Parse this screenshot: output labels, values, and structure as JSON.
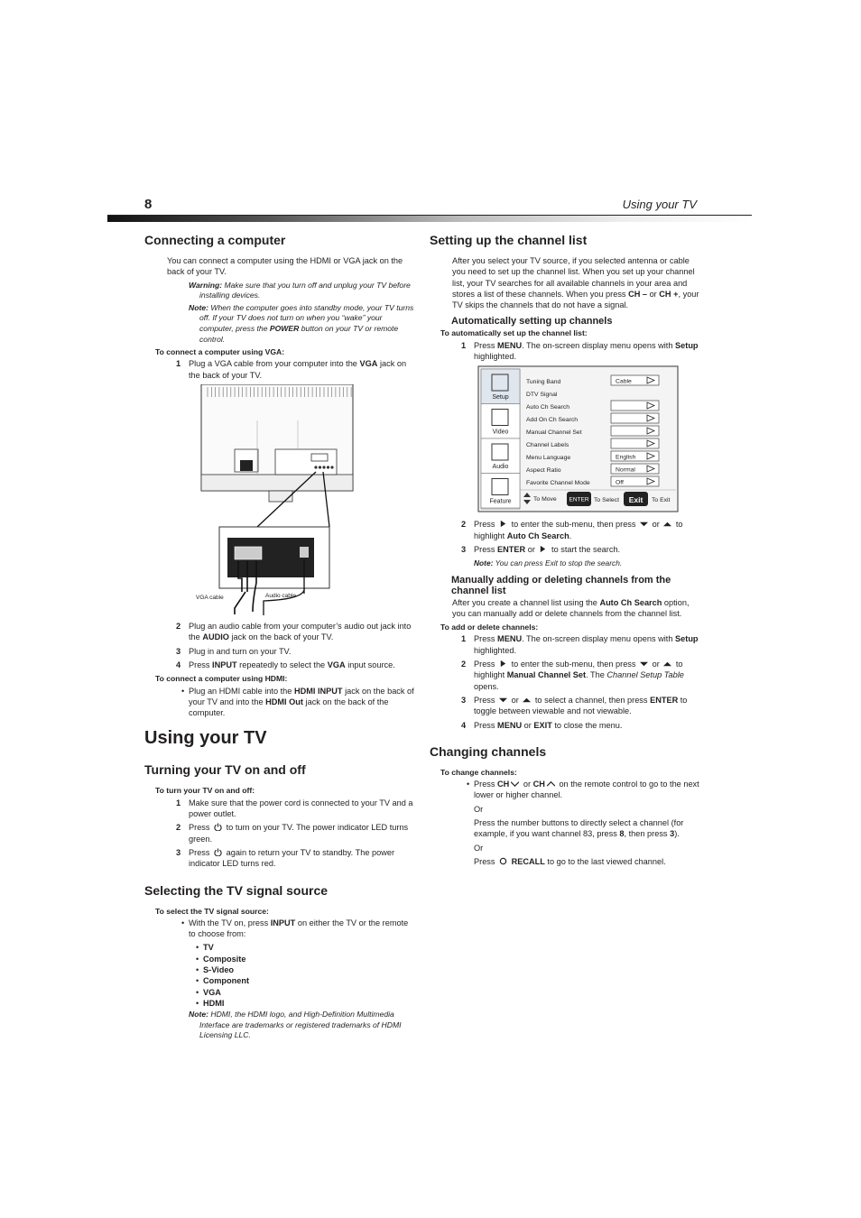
{
  "header": {
    "page_number": "8",
    "running_title": "Using your TV"
  },
  "left_column": {
    "blocks": [
      {
        "kind": "h2",
        "text": "Connecting a computer"
      },
      {
        "kind": "p",
        "runs": [
          "You can connect a computer using the HDMI or VGA jack on the back of your TV."
        ]
      },
      {
        "kind": "note",
        "runs": [
          {
            "text": "Warning:",
            "style": "bi"
          },
          {
            "text": " Make sure that you turn off and unplug your TV before installing devices.",
            "style": "i"
          }
        ]
      },
      {
        "kind": "note",
        "runs": [
          {
            "text": "Note:",
            "style": "bi"
          },
          {
            "text": " When the computer goes into standby mode, your TV turns off. If your TV does not turn on when you “wake” your computer, press the ",
            "style": "i"
          },
          {
            "text": "POWER",
            "style": "bi"
          },
          {
            "text": " button on your TV or remote control.",
            "style": "i"
          }
        ]
      },
      {
        "kind": "label",
        "text": "To connect a computer using VGA:"
      },
      {
        "kind": "step",
        "number": "1",
        "runs": [
          "Plug a VGA cable from your computer into the ",
          {
            "text": "VGA",
            "style": "b"
          },
          " jack on the back of your TV."
        ]
      },
      {
        "kind": "figure",
        "figure": "tv-back",
        "labels": {
          "vga": "VGA cable",
          "audio": "Audio cable"
        }
      },
      {
        "kind": "step",
        "number": "2",
        "runs": [
          "Plug an audio cable from your computer’s audio out jack into the ",
          {
            "text": "AUDIO",
            "style": "b"
          },
          " jack on the back of your TV."
        ]
      },
      {
        "kind": "step",
        "number": "3",
        "runs": [
          "Plug in and turn on your TV."
        ]
      },
      {
        "kind": "step",
        "number": "4",
        "runs": [
          "Press ",
          {
            "text": "INPUT",
            "style": "b"
          },
          " repeatedly to select the ",
          {
            "text": "VGA",
            "style": "b"
          },
          " input source."
        ]
      },
      {
        "kind": "label",
        "text": "To connect a computer using HDMI:"
      },
      {
        "kind": "bullet",
        "runs": [
          "Plug an HDMI cable into the ",
          {
            "text": "HDMI INPUT",
            "style": "b"
          },
          " jack on the back of your TV and into the ",
          {
            "text": "HDMI Out",
            "style": "b"
          },
          " jack on the back of the computer."
        ]
      },
      {
        "kind": "h1",
        "text": "Using your TV"
      },
      {
        "kind": "h2",
        "text": "Turning your TV on and off"
      },
      {
        "kind": "label",
        "text": "To turn your TV on and off:"
      },
      {
        "kind": "step",
        "number": "1",
        "runs": [
          "Make sure that the power cord is connected to your TV and a power outlet."
        ]
      },
      {
        "kind": "step",
        "number": "2",
        "runs": [
          "Press ",
          {
            "icon": "power"
          },
          " to turn on your TV. The power indicator LED turns green."
        ]
      },
      {
        "kind": "step",
        "number": "3",
        "runs": [
          "Press ",
          {
            "icon": "power"
          },
          " again to return your TV to standby. The power indicator LED turns red."
        ]
      },
      {
        "kind": "h2",
        "text": "Selecting the TV signal source"
      },
      {
        "kind": "label",
        "text": "To select the TV signal source:"
      },
      {
        "kind": "bullet",
        "runs": [
          "With the TV on, press ",
          {
            "text": "INPUT",
            "style": "b"
          },
          " on either the TV or the remote to choose from:"
        ]
      },
      {
        "kind": "sublist",
        "items": [
          "TV",
          "Composite",
          "S-Video",
          "Component",
          "VGA",
          "HDMI"
        ]
      },
      {
        "kind": "note",
        "runs": [
          {
            "text": "Note:",
            "style": "bi"
          },
          {
            "text": " HDMI, the HDMI logo, and High-Definition Multimedia Interface are trademarks or registered trademarks of HDMI Licensing LLC.",
            "style": "i"
          }
        ]
      }
    ]
  },
  "right_column": {
    "blocks": [
      {
        "kind": "h2",
        "text": "Setting up the channel list"
      },
      {
        "kind": "p",
        "runs": [
          "After you select your TV source, if you selected antenna or cable you need to set up the channel list. When you set up your channel list, your TV searches for all available channels in your area and stores a list of these channels. When you press ",
          {
            "text": "CH –",
            "style": "b"
          },
          " or ",
          {
            "text": "CH +",
            "style": "b"
          },
          ", your TV skips the channels that do not have a signal."
        ]
      },
      {
        "kind": "h3",
        "text": "Automatically setting up channels"
      },
      {
        "kind": "label",
        "text": "To automatically set up the channel list:"
      },
      {
        "kind": "step",
        "number": "1",
        "runs": [
          "Press ",
          {
            "text": "MENU",
            "style": "b"
          },
          ". The on-screen display menu opens with ",
          {
            "text": "Setup",
            "style": "b"
          },
          " highlighted."
        ]
      },
      {
        "kind": "figure",
        "figure": "menu",
        "tabs": [
          "Setup",
          "Video",
          "Audio",
          "Feature"
        ],
        "rows": [
          {
            "label": "Tuning Band",
            "value": "Cable"
          },
          {
            "label": "DTV Signal"
          },
          {
            "label": "Auto Ch Search",
            "control": true
          },
          {
            "label": "Add On Ch Search",
            "control": true
          },
          {
            "label": "Manual Channel Set",
            "control": true
          },
          {
            "label": "Channel Labels",
            "control": true
          },
          {
            "label": "Menu Language",
            "value": "English"
          },
          {
            "label": "Aspect Ratio",
            "value": "Normal"
          },
          {
            "label": "Favorite Channel Mode",
            "value": "Off"
          }
        ],
        "footer": {
          "move": "To Move",
          "enter": "ENTER",
          "select": "To Select",
          "exit": "Exit",
          "exit_hint": "To Exit"
        }
      },
      {
        "kind": "step",
        "number": "2",
        "runs": [
          "Press ",
          {
            "icon": "right"
          },
          " to enter the sub-menu, then press ",
          {
            "icon": "down"
          },
          " or ",
          {
            "icon": "up"
          },
          " to highlight ",
          {
            "text": "Auto Ch Search",
            "style": "b"
          },
          "."
        ]
      },
      {
        "kind": "step",
        "number": "3",
        "runs": [
          "Press ",
          {
            "text": "ENTER",
            "style": "b"
          },
          " or ",
          {
            "icon": "right"
          },
          " to start the search."
        ]
      },
      {
        "kind": "stepnote",
        "runs": [
          {
            "text": "Note:",
            "style": "bi"
          },
          {
            "text": " You can press Exit to stop the search.",
            "style": "i"
          }
        ]
      },
      {
        "kind": "h3",
        "text": "Manually adding or deleting channels from the channel list"
      },
      {
        "kind": "p",
        "runs": [
          "After you create a channel list using the ",
          {
            "text": "Auto Ch Search",
            "style": "b"
          },
          " option, you can manually add or delete channels from the channel list."
        ]
      },
      {
        "kind": "label",
        "text": "To add or delete channels:"
      },
      {
        "kind": "step",
        "number": "1",
        "runs": [
          "Press ",
          {
            "text": "MENU",
            "style": "b"
          },
          ". The on-screen display menu opens with ",
          {
            "text": "Setup",
            "style": "b"
          },
          " highlighted."
        ]
      },
      {
        "kind": "step",
        "number": "2",
        "runs": [
          "Press ",
          {
            "icon": "right"
          },
          " to enter the sub-menu, then press ",
          {
            "icon": "down"
          },
          " or ",
          {
            "icon": "up"
          },
          " to highlight ",
          {
            "text": "Manual Channel Set",
            "style": "b"
          },
          ". The ",
          {
            "text": "Channel Setup Table",
            "style": "i"
          },
          " opens."
        ]
      },
      {
        "kind": "step",
        "number": "3",
        "runs": [
          "Press ",
          {
            "icon": "down"
          },
          " or ",
          {
            "icon": "up"
          },
          " to select a channel, then press ",
          {
            "text": "ENTER",
            "style": "b"
          },
          " to toggle between viewable and not viewable."
        ]
      },
      {
        "kind": "step",
        "number": "4",
        "runs": [
          "Press ",
          {
            "text": "MENU",
            "style": "b"
          },
          " or ",
          {
            "text": "EXIT",
            "style": "b"
          },
          " to close the menu."
        ]
      },
      {
        "kind": "h2",
        "text": "Changing channels"
      },
      {
        "kind": "label",
        "text": "To change channels:"
      },
      {
        "kind": "bullet",
        "runs": [
          "Press ",
          {
            "text": "CH",
            "style": "b"
          },
          {
            "icon": "chev-down"
          },
          " or ",
          {
            "text": "CH",
            "style": "b"
          },
          {
            "icon": "chev-up"
          },
          " on the remote control to go to the next lower or higher channel."
        ]
      },
      {
        "kind": "subp",
        "runs": [
          "Or"
        ]
      },
      {
        "kind": "subp",
        "runs": [
          "Press the number buttons to directly select a channel (for example, if you want channel 83, press ",
          {
            "text": "8",
            "style": "b"
          },
          ", then press ",
          {
            "text": "3",
            "style": "b"
          },
          ")."
        ]
      },
      {
        "kind": "subp",
        "runs": [
          "Or"
        ]
      },
      {
        "kind": "subp",
        "runs": [
          "Press ",
          {
            "icon": "recall"
          },
          " ",
          {
            "text": "RECALL",
            "style": "b"
          },
          " to go to the last viewed channel."
        ]
      }
    ]
  }
}
